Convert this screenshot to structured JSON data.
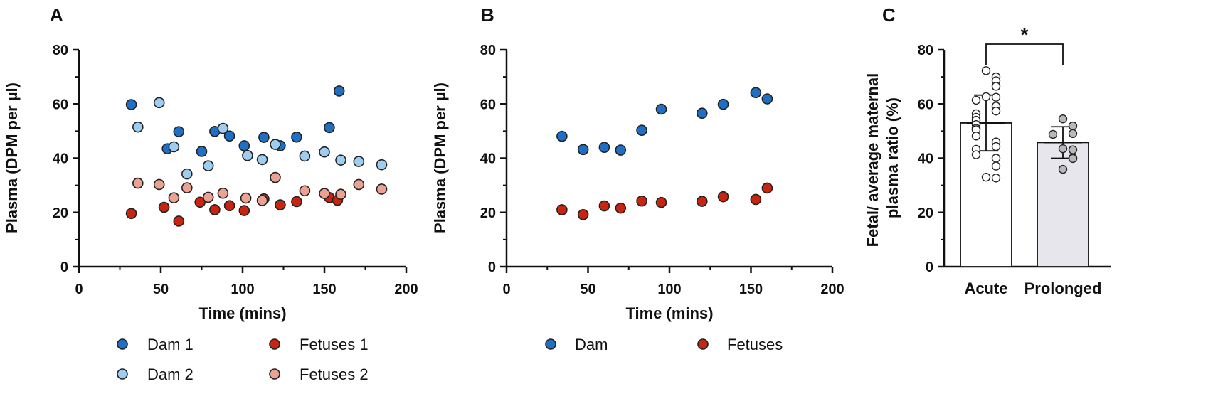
{
  "colors": {
    "dam1": "#1f6fc5",
    "dam2": "#9fcdee",
    "fetuses1": "#c9240f",
    "fetuses2": "#eba293",
    "dam": "#1f6fc5",
    "fetuses": "#c9240f",
    "acute_bar": "#ffffff",
    "prolonged_bar": "#e6e6ec",
    "acute_points": "#ffffff",
    "prolonged_points": "#b8b8b8",
    "axis": "#111111"
  },
  "chart_data": [
    {
      "panel": "A",
      "type": "scatter",
      "xlabel": "Time (mins)",
      "ylabel": "Plasma (DPM per µl)",
      "xlim": [
        0,
        200
      ],
      "ylim": [
        0,
        80
      ],
      "xticks": [
        "0",
        "50",
        "100",
        "150",
        "200"
      ],
      "yticks": [
        "0",
        "20",
        "40",
        "60",
        "80"
      ],
      "legend_position": "bottom",
      "series": [
        {
          "name": "Dam 1",
          "color_key": "dam1",
          "x": [
            32,
            54,
            61,
            75,
            83,
            92,
            101,
            113,
            123,
            133,
            153,
            159
          ],
          "y": [
            59.8,
            43.5,
            49.8,
            42.5,
            49.9,
            48.2,
            44.6,
            47.7,
            44.6,
            47.8,
            51.3,
            64.8
          ]
        },
        {
          "name": "Dam 2",
          "color_key": "dam2",
          "x": [
            36,
            49,
            58,
            66,
            79,
            88,
            103,
            112,
            120,
            138,
            150,
            160,
            171,
            185
          ],
          "y": [
            51.5,
            60.5,
            44.2,
            34.2,
            37.2,
            51.0,
            41.0,
            39.5,
            45.1,
            40.8,
            42.3,
            39.3,
            38.8,
            37.6
          ]
        },
        {
          "name": "Fetuses 1",
          "color_key": "fetuses1",
          "x": [
            32,
            52,
            61,
            74,
            83,
            92,
            101,
            113,
            123,
            133,
            153,
            158
          ],
          "y": [
            19.6,
            21.9,
            16.8,
            23.8,
            21.0,
            22.5,
            20.7,
            25.0,
            22.8,
            24.0,
            25.5,
            24.5
          ]
        },
        {
          "name": "Fetuses 2",
          "color_key": "fetuses2",
          "x": [
            36,
            49,
            58,
            66,
            79,
            88,
            102,
            112,
            120,
            138,
            150,
            160,
            171,
            185
          ],
          "y": [
            30.8,
            30.3,
            25.4,
            29.1,
            25.6,
            27.1,
            25.3,
            24.4,
            32.9,
            28.0,
            27.0,
            26.7,
            30.3,
            28.6
          ]
        }
      ]
    },
    {
      "panel": "B",
      "type": "scatter",
      "xlabel": "Time (mins)",
      "ylabel": "Plasma (DPM per µl)",
      "xlim": [
        0,
        200
      ],
      "ylim": [
        0,
        80
      ],
      "xticks": [
        "0",
        "50",
        "100",
        "150",
        "200"
      ],
      "yticks": [
        "0",
        "20",
        "40",
        "60",
        "80"
      ],
      "legend_position": "bottom",
      "series": [
        {
          "name": "Dam",
          "color_key": "dam",
          "x": [
            34,
            47,
            60,
            70,
            83,
            95,
            120,
            133,
            153,
            160
          ],
          "y": [
            48.1,
            43.2,
            44.0,
            43.0,
            50.3,
            58.1,
            56.6,
            59.9,
            64.2,
            61.9
          ]
        },
        {
          "name": "Fetuses",
          "color_key": "fetuses",
          "x": [
            34,
            47,
            60,
            70,
            83,
            95,
            120,
            133,
            153,
            160
          ],
          "y": [
            21.0,
            19.2,
            22.4,
            21.6,
            24.2,
            23.7,
            24.1,
            25.8,
            24.8,
            29.0
          ]
        }
      ]
    },
    {
      "panel": "C",
      "type": "bar",
      "ylabel_lines": [
        "Fetal/ average maternal",
        "plasma ratio (%)"
      ],
      "ylim": [
        0,
        80
      ],
      "yticks": [
        "0",
        "20",
        "40",
        "60",
        "80"
      ],
      "categories": [
        "Acute",
        "Prolonged"
      ],
      "values": [
        53.0,
        45.8
      ],
      "sd": [
        10.3,
        5.8
      ],
      "significance": "*",
      "points": [
        [
          72.3,
          70.0,
          68.6,
          66.5,
          62.7,
          62.5,
          61.4,
          59.2,
          57.4,
          56.4,
          55.1,
          54.0,
          52.4,
          51.0,
          50.5,
          48.2,
          46.0,
          44.3,
          43.3,
          41.3,
          40.0,
          37.1,
          33.0,
          32.7
        ],
        [
          54.5,
          51.9,
          49.1,
          48.8,
          43.5,
          43.1,
          40.1,
          39.9,
          35.9
        ]
      ]
    }
  ]
}
